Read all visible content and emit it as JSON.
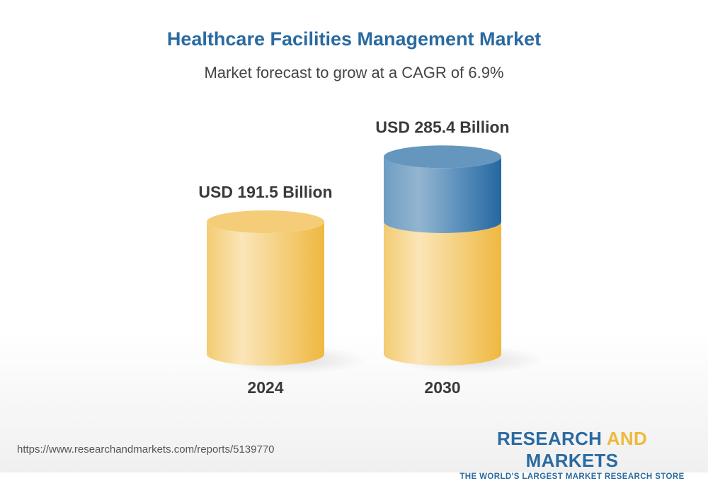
{
  "title": "Healthcare Facilities Management Market",
  "subtitle": "Market forecast to grow at a CAGR of 6.9%",
  "url": "https://www.researchandmarkets.com/reports/5139770",
  "logo": {
    "part1": "RESEARCH ",
    "part2": "AND",
    "part3": " MARKETS",
    "tagline": "THE WORLD'S LARGEST MARKET RESEARCH STORE"
  },
  "colors": {
    "base": "#f2c04f",
    "growth": "#2d6a9f",
    "title": "#2a6aa0"
  },
  "chart_data": {
    "type": "bar",
    "style": "3d-cylinder",
    "categories": [
      "2024",
      "2030"
    ],
    "values": [
      191.5,
      285.4
    ],
    "data_labels": [
      "USD 191.5 Billion",
      "USD 285.4 Billion"
    ],
    "unit": "USD Billion",
    "cagr": "6.9%"
  }
}
